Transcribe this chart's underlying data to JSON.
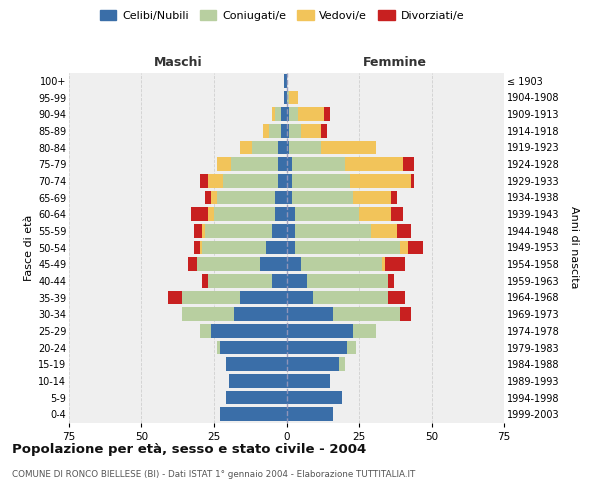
{
  "age_groups": [
    "0-4",
    "5-9",
    "10-14",
    "15-19",
    "20-24",
    "25-29",
    "30-34",
    "35-39",
    "40-44",
    "45-49",
    "50-54",
    "55-59",
    "60-64",
    "65-69",
    "70-74",
    "75-79",
    "80-84",
    "85-89",
    "90-94",
    "95-99",
    "100+"
  ],
  "birth_years": [
    "1999-2003",
    "1994-1998",
    "1989-1993",
    "1984-1988",
    "1979-1983",
    "1974-1978",
    "1969-1973",
    "1964-1968",
    "1959-1963",
    "1954-1958",
    "1949-1953",
    "1944-1948",
    "1939-1943",
    "1934-1938",
    "1929-1933",
    "1924-1928",
    "1919-1923",
    "1914-1918",
    "1909-1913",
    "1904-1908",
    "≤ 1903"
  ],
  "colors": {
    "celibi": "#3a6ea8",
    "coniugati": "#b8cfa0",
    "vedovi": "#f2c45a",
    "divorziati": "#c82020"
  },
  "males": {
    "celibi": [
      23,
      21,
      20,
      21,
      23,
      26,
      18,
      16,
      5,
      9,
      7,
      5,
      4,
      4,
      3,
      3,
      3,
      2,
      2,
      1,
      1
    ],
    "coniugati": [
      0,
      0,
      0,
      0,
      1,
      4,
      18,
      20,
      22,
      22,
      22,
      23,
      21,
      20,
      19,
      16,
      9,
      4,
      2,
      0,
      0
    ],
    "vedovi": [
      0,
      0,
      0,
      0,
      0,
      0,
      0,
      0,
      0,
      0,
      1,
      1,
      2,
      2,
      5,
      5,
      4,
      2,
      1,
      0,
      0
    ],
    "divorziati": [
      0,
      0,
      0,
      0,
      0,
      0,
      0,
      5,
      2,
      3,
      2,
      3,
      6,
      2,
      3,
      0,
      0,
      0,
      0,
      0,
      0
    ]
  },
  "females": {
    "celibi": [
      16,
      19,
      15,
      18,
      21,
      23,
      16,
      9,
      7,
      5,
      3,
      3,
      3,
      2,
      2,
      2,
      1,
      1,
      1,
      0,
      0
    ],
    "coniugati": [
      0,
      0,
      0,
      2,
      3,
      8,
      23,
      26,
      28,
      28,
      36,
      26,
      22,
      21,
      20,
      18,
      11,
      4,
      3,
      1,
      0
    ],
    "vedovi": [
      0,
      0,
      0,
      0,
      0,
      0,
      0,
      0,
      0,
      1,
      3,
      9,
      11,
      13,
      21,
      20,
      19,
      7,
      9,
      3,
      0
    ],
    "divorziati": [
      0,
      0,
      0,
      0,
      0,
      0,
      4,
      6,
      2,
      7,
      5,
      5,
      4,
      2,
      1,
      4,
      0,
      2,
      2,
      0,
      0
    ]
  },
  "title": "Popolazione per età, sesso e stato civile - 2004",
  "subtitle": "COMUNE DI RONCO BIELLESE (BI) - Dati ISTAT 1° gennaio 2004 - Elaborazione TUTTITALIA.IT",
  "xlabel_left": "Maschi",
  "xlabel_right": "Femmine",
  "ylabel_left": "Fasce di età",
  "ylabel_right": "Anni di nascita",
  "xlim": 75,
  "bg_color": "#ffffff",
  "plot_bg_color": "#efefef",
  "grid_color": "#cccccc"
}
